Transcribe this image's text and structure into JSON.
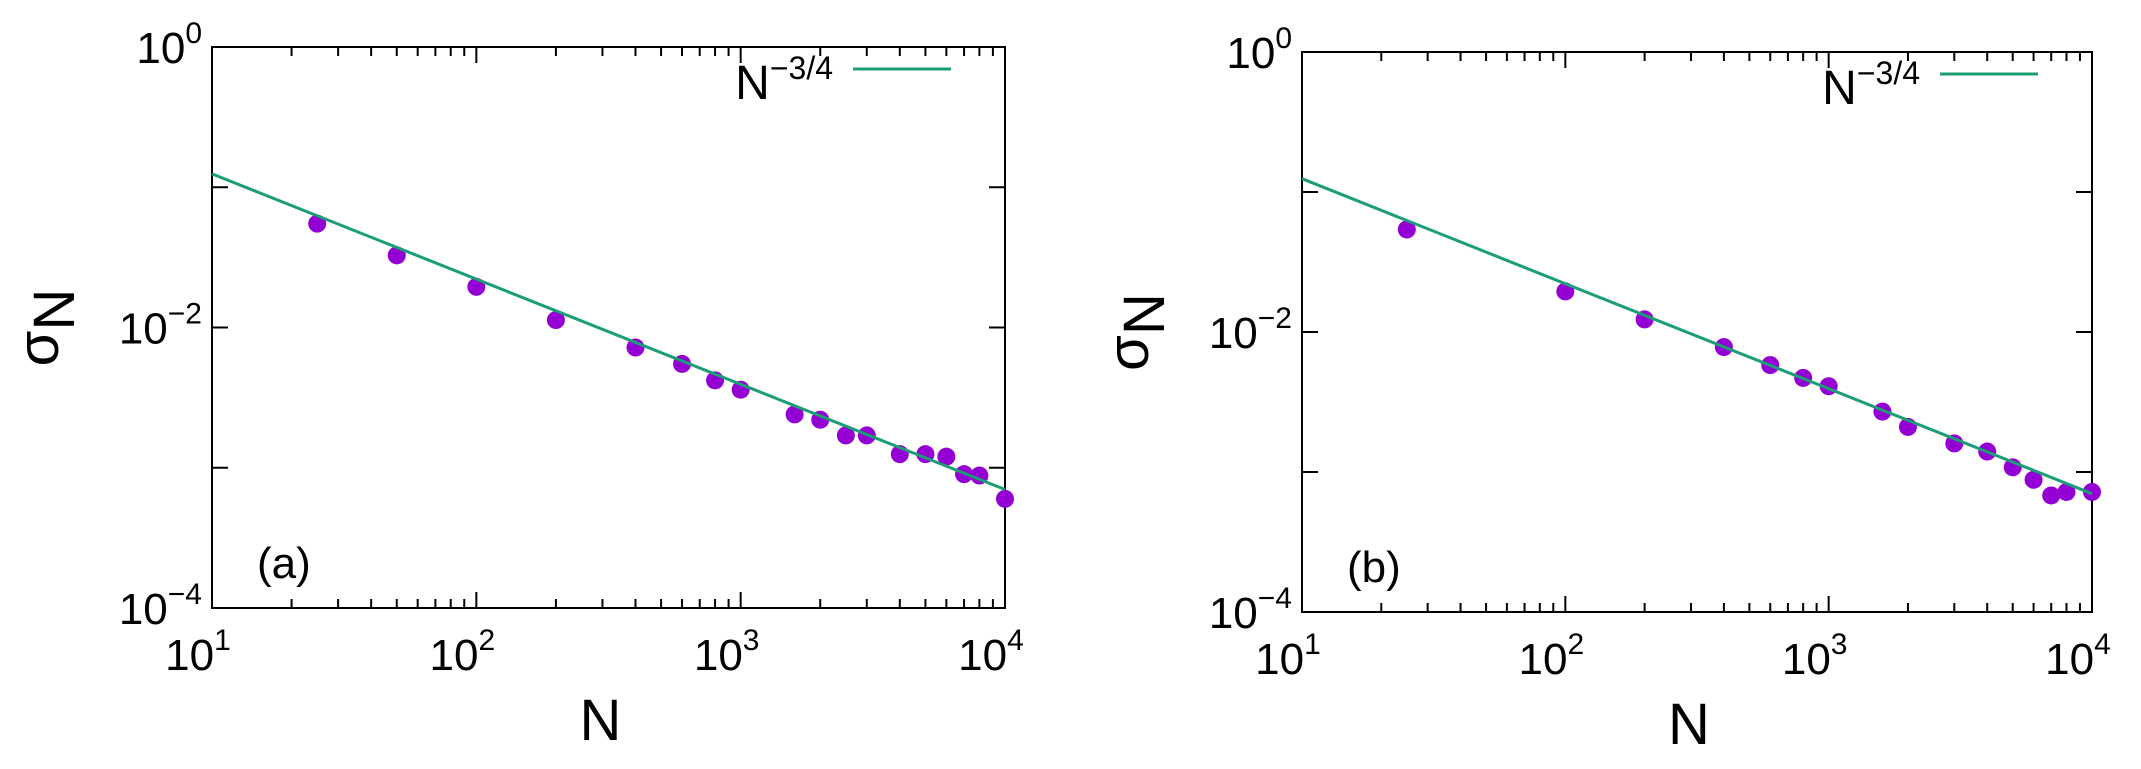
{
  "colors": {
    "line": "#1b9e77",
    "points": "#9400d3"
  },
  "chart_data": [
    {
      "type": "scatter",
      "panel_label": "(a)",
      "xlabel": "N",
      "ylabel_base": "σ",
      "ylabel_sub": "N",
      "xscale": "log",
      "yscale": "log",
      "xlim": [
        10,
        10000
      ],
      "ylim": [
        0.0001,
        1
      ],
      "x_ticks": [
        {
          "value": 10,
          "base": "10",
          "exp": "1"
        },
        {
          "value": 100,
          "base": "10",
          "exp": "2"
        },
        {
          "value": 1000,
          "base": "10",
          "exp": "3"
        },
        {
          "value": 10000,
          "base": "10",
          "exp": "4"
        }
      ],
      "y_ticks": [
        {
          "value": 0.0001,
          "base": "10",
          "exp": "−4"
        },
        {
          "value": 0.01,
          "base": "10",
          "exp": "−2"
        },
        {
          "value": 1,
          "base": "10",
          "exp": "0"
        }
      ],
      "grid": false,
      "legend_position": "top-right",
      "series": [
        {
          "kind": "points",
          "x": [
            25,
            50,
            100,
            200,
            400,
            600,
            800,
            1000,
            1600,
            2000,
            2500,
            3000,
            4000,
            5000,
            6000,
            7000,
            8000,
            10000
          ],
          "y": [
            0.055,
            0.0327,
            0.0195,
            0.0113,
            0.0072,
            0.0055,
            0.0042,
            0.0036,
            0.0024,
            0.0022,
            0.0017,
            0.0017,
            0.00125,
            0.00125,
            0.0012,
            0.0009,
            0.00088,
            0.0006
          ]
        },
        {
          "kind": "line",
          "name_base": "N",
          "name_exp": "−3/4",
          "coef": 0.7,
          "exponent": -0.75
        }
      ]
    },
    {
      "type": "scatter",
      "panel_label": "(b)",
      "xlabel": "N",
      "ylabel_base": "σ",
      "ylabel_sub": "N",
      "xscale": "log",
      "yscale": "log",
      "xlim": [
        10,
        10000
      ],
      "ylim": [
        0.0001,
        1
      ],
      "x_ticks": [
        {
          "value": 10,
          "base": "10",
          "exp": "1"
        },
        {
          "value": 100,
          "base": "10",
          "exp": "2"
        },
        {
          "value": 1000,
          "base": "10",
          "exp": "3"
        },
        {
          "value": 10000,
          "base": "10",
          "exp": "4"
        }
      ],
      "y_ticks": [
        {
          "value": 0.0001,
          "base": "10",
          "exp": "−4"
        },
        {
          "value": 0.01,
          "base": "10",
          "exp": "−2"
        },
        {
          "value": 1,
          "base": "10",
          "exp": "0"
        }
      ],
      "grid": false,
      "legend_position": "top-right",
      "series": [
        {
          "kind": "points",
          "x": [
            25,
            100,
            200,
            400,
            600,
            800,
            1000,
            1600,
            2000,
            3000,
            4000,
            5000,
            6000,
            7000,
            8000,
            10000
          ],
          "y": [
            0.054,
            0.0195,
            0.0123,
            0.0078,
            0.0058,
            0.0047,
            0.0041,
            0.0027,
            0.0021,
            0.0016,
            0.0014,
            0.00108,
            0.00088,
            0.00068,
            0.00072,
            0.00072
          ]
        },
        {
          "kind": "line",
          "name_base": "N",
          "name_exp": "−3/4",
          "coef": 0.7,
          "exponent": -0.75
        }
      ]
    }
  ]
}
